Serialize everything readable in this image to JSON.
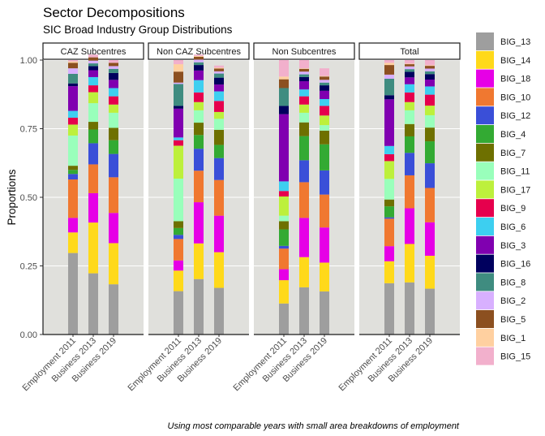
{
  "chart_data": {
    "type": "bar",
    "stacked": true,
    "title": "Sector Decompositions",
    "subtitle": "SIC Broad Industry Group Distributions",
    "ylabel": "Proportions",
    "xlabel": "",
    "caption": "Using most comparable years with small area breakdowns of employment",
    "ylim": [
      0,
      1
    ],
    "yticks": [
      0,
      0.25,
      0.5,
      0.75,
      1
    ],
    "ytick_labels": [
      "0.00",
      "0.25",
      "0.50",
      "0.75",
      "1.00"
    ],
    "grid": true,
    "legend_position": "right",
    "panels": [
      "CAZ Subcentres",
      "Non CAZ Subcentres",
      "Non Subcentres",
      "Total"
    ],
    "categories": [
      "Employment 2011",
      "Business 2013",
      "Business 2019"
    ],
    "series": [
      {
        "name": "BIG_13",
        "color": "#9e9e9e",
        "values": [
          [
            0.297,
            0.223,
            0.183
          ],
          [
            0.158,
            0.202,
            0.17
          ],
          [
            0.113,
            0.172,
            0.157
          ],
          [
            0.187,
            0.19,
            0.167
          ]
        ]
      },
      {
        "name": "BIG_14",
        "color": "#ffd91a",
        "values": [
          [
            0.075,
            0.185,
            0.15
          ],
          [
            0.075,
            0.13,
            0.13
          ],
          [
            0.085,
            0.11,
            0.105
          ],
          [
            0.08,
            0.14,
            0.12
          ]
        ]
      },
      {
        "name": "BIG_18",
        "color": "#e600e6",
        "values": [
          [
            0.053,
            0.107,
            0.11
          ],
          [
            0.037,
            0.15,
            0.133
          ],
          [
            0.04,
            0.143,
            0.128
          ],
          [
            0.055,
            0.13,
            0.122
          ]
        ]
      },
      {
        "name": "BIG_10",
        "color": "#f07830",
        "values": [
          [
            0.14,
            0.105,
            0.13
          ],
          [
            0.078,
            0.115,
            0.13
          ],
          [
            0.075,
            0.13,
            0.12
          ],
          [
            0.1,
            0.12,
            0.125
          ]
        ]
      },
      {
        "name": "BIG_12",
        "color": "#3a4fd8",
        "values": [
          [
            0.02,
            0.077,
            0.085
          ],
          [
            0.015,
            0.08,
            0.08
          ],
          [
            0.01,
            0.08,
            0.088
          ],
          [
            0.005,
            0.082,
            0.09
          ]
        ]
      },
      {
        "name": "BIG_4",
        "color": "#33aa33",
        "values": [
          [
            0.015,
            0.05,
            0.05
          ],
          [
            0.025,
            0.05,
            0.048
          ],
          [
            0.06,
            0.088,
            0.095
          ],
          [
            0.04,
            0.06,
            0.08
          ]
        ]
      },
      {
        "name": "BIG_7",
        "color": "#6e7000",
        "values": [
          [
            0.015,
            0.028,
            0.045
          ],
          [
            0.025,
            0.045,
            0.055
          ],
          [
            0.03,
            0.05,
            0.05
          ],
          [
            0.025,
            0.045,
            0.05
          ]
        ]
      },
      {
        "name": "BIG_11",
        "color": "#99ffbb",
        "values": [
          [
            0.11,
            0.068,
            0.055
          ],
          [
            0.155,
            0.045,
            0.04
          ],
          [
            0.02,
            0.035,
            0.02
          ],
          [
            0.075,
            0.05,
            0.045
          ]
        ]
      },
      {
        "name": "BIG_17",
        "color": "#bdf03c",
        "values": [
          [
            0.04,
            0.04,
            0.03
          ],
          [
            0.12,
            0.03,
            0.025
          ],
          [
            0.07,
            0.03,
            0.035
          ],
          [
            0.065,
            0.03,
            0.035
          ]
        ]
      },
      {
        "name": "BIG_9",
        "color": "#e6004d",
        "values": [
          [
            0.025,
            0.025,
            0.03
          ],
          [
            0.02,
            0.035,
            0.04
          ],
          [
            0.02,
            0.03,
            0.035
          ],
          [
            0.025,
            0.035,
            0.04
          ]
        ]
      },
      {
        "name": "BIG_6",
        "color": "#3dcff0",
        "values": [
          [
            0.025,
            0.03,
            0.03
          ],
          [
            0.01,
            0.045,
            0.035
          ],
          [
            0.035,
            0.025,
            0.025
          ],
          [
            0.03,
            0.03,
            0.03
          ]
        ]
      },
      {
        "name": "BIG_3",
        "color": "#8000b0",
        "values": [
          [
            0.09,
            0.025,
            0.03
          ],
          [
            0.105,
            0.035,
            0.025
          ],
          [
            0.245,
            0.03,
            0.03
          ],
          [
            0.17,
            0.025,
            0.025
          ]
        ]
      },
      {
        "name": "BIG_16",
        "color": "#00005e",
        "values": [
          [
            0.01,
            0.015,
            0.025
          ],
          [
            0.01,
            0.02,
            0.025
          ],
          [
            0.03,
            0.015,
            0.02
          ],
          [
            0.015,
            0.02,
            0.02
          ]
        ]
      },
      {
        "name": "BIG_8",
        "color": "#3f8c80",
        "values": [
          [
            0.035,
            0.01,
            0.015
          ],
          [
            0.08,
            0.01,
            0.015
          ],
          [
            0.065,
            0.01,
            0.01
          ],
          [
            0.06,
            0.01,
            0.01
          ]
        ]
      },
      {
        "name": "BIG_2",
        "color": "#d8b0ff",
        "values": [
          [
            0.02,
            0.01,
            0.01
          ],
          [
            0.005,
            0.01,
            0.008
          ],
          [
            0.0,
            0.01,
            0.01
          ],
          [
            0.015,
            0.01,
            0.01
          ]
        ]
      },
      {
        "name": "BIG_5",
        "color": "#8c5020",
        "values": [
          [
            0.02,
            0.012,
            0.012
          ],
          [
            0.04,
            0.01,
            0.01
          ],
          [
            0.032,
            0.01,
            0.012
          ],
          [
            0.035,
            0.008,
            0.01
          ]
        ]
      },
      {
        "name": "BIG_1",
        "color": "#ffd0a0",
        "values": [
          [
            0.005,
            0.0,
            0.0
          ],
          [
            0.027,
            0.003,
            0.003
          ],
          [
            0.01,
            0.002,
            0.002
          ],
          [
            0.008,
            0.002,
            0.002
          ]
        ]
      },
      {
        "name": "BIG_15",
        "color": "#f2b0cc",
        "values": [
          [
            0.005,
            0.01,
            0.01
          ],
          [
            0.015,
            0.005,
            0.008
          ],
          [
            0.06,
            0.03,
            0.028
          ],
          [
            0.01,
            0.013,
            0.019
          ]
        ]
      }
    ]
  }
}
